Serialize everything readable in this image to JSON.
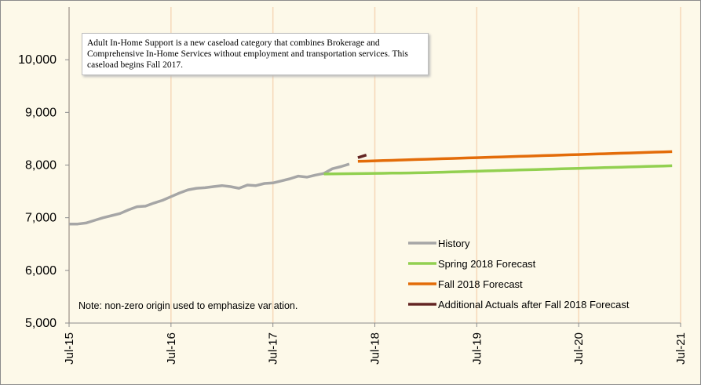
{
  "chart_data": {
    "type": "line",
    "annotation": "Adult In-Home Support is a new caseload category that combines Brokerage and Comprehensive In-Home Services without employment and transportation services. This caseload begins Fall 2017.",
    "note": "Note: non-zero origin used to emphasize variation.",
    "x": [
      "Jul-15",
      "Aug-15",
      "Sep-15",
      "Oct-15",
      "Nov-15",
      "Dec-15",
      "Jan-16",
      "Feb-16",
      "Mar-16",
      "Apr-16",
      "May-16",
      "Jun-16",
      "Jul-16",
      "Aug-16",
      "Sep-16",
      "Oct-16",
      "Nov-16",
      "Dec-16",
      "Jan-17",
      "Feb-17",
      "Mar-17",
      "Apr-17",
      "May-17",
      "Jun-17",
      "Jul-17",
      "Aug-17",
      "Sep-17",
      "Oct-17",
      "Nov-17",
      "Dec-17",
      "Jan-18",
      "Feb-18",
      "Mar-18",
      "Apr-18",
      "May-18",
      "Jun-18",
      "Jul-18",
      "Aug-18",
      "Sep-18",
      "Oct-18",
      "Nov-18",
      "Dec-18",
      "Jan-19",
      "Feb-19",
      "Mar-19",
      "Apr-19",
      "May-19",
      "Jun-19",
      "Jul-19",
      "Aug-19",
      "Sep-19",
      "Oct-19",
      "Nov-19",
      "Dec-19",
      "Jan-20",
      "Feb-20",
      "Mar-20",
      "Apr-20",
      "May-20",
      "Jun-20",
      "Jul-20",
      "Aug-20",
      "Sep-20",
      "Oct-20",
      "Nov-20",
      "Dec-20",
      "Jan-21",
      "Feb-21",
      "Mar-21",
      "Apr-21",
      "May-21",
      "Jun-21",
      "Jul-21"
    ],
    "xticks": [
      "Jul-15",
      "Jul-16",
      "Jul-17",
      "Jul-18",
      "Jul-19",
      "Jul-20",
      "Jul-21"
    ],
    "ylim": [
      5000,
      11000
    ],
    "yticks": [
      {
        "value": 5000,
        "label": "5,000"
      },
      {
        "value": 6000,
        "label": "6,000"
      },
      {
        "value": 7000,
        "label": "7,000"
      },
      {
        "value": 8000,
        "label": "8,000"
      },
      {
        "value": 9000,
        "label": "9,000"
      },
      {
        "value": 10000,
        "label": "10,000"
      }
    ],
    "grid": "x",
    "legend": "lower right",
    "series": [
      {
        "name": "History",
        "color": "#a6a6a6",
        "values": [
          6880,
          6880,
          6900,
          6950,
          7000,
          7040,
          7080,
          7150,
          7210,
          7220,
          7280,
          7330,
          7400,
          7470,
          7530,
          7560,
          7570,
          7590,
          7610,
          7590,
          7560,
          7620,
          7610,
          7650,
          7660,
          7700,
          7740,
          7790,
          7770,
          7810,
          7840,
          7930,
          7970,
          8020,
          null,
          null,
          null,
          null,
          null,
          null,
          null,
          null,
          null,
          null,
          null,
          null,
          null,
          null,
          null,
          null,
          null,
          null,
          null,
          null,
          null,
          null,
          null,
          null,
          null,
          null,
          null,
          null,
          null,
          null,
          null,
          null,
          null,
          null,
          null,
          null,
          null,
          null,
          null
        ]
      },
      {
        "name": "Spring 2018 Forecast",
        "color": "#92d050",
        "values": [
          null,
          null,
          null,
          null,
          null,
          null,
          null,
          null,
          null,
          null,
          null,
          null,
          null,
          null,
          null,
          null,
          null,
          null,
          null,
          null,
          null,
          null,
          null,
          null,
          null,
          null,
          null,
          null,
          null,
          null,
          7830,
          7832,
          7834,
          7836,
          7838,
          7840,
          7842,
          7844,
          7846,
          7848,
          7850,
          7852,
          7856,
          7860,
          7865,
          7870,
          7874,
          7879,
          7883,
          7888,
          7892,
          7897,
          7901,
          7906,
          7910,
          7915,
          7919,
          7924,
          7928,
          7933,
          7937,
          7942,
          7946,
          7951,
          7955,
          7960,
          7964,
          7969,
          7973,
          7978,
          7982,
          7987,
          null
        ]
      },
      {
        "name": "Fall 2018 Forecast",
        "color": "#e36c09",
        "values": [
          null,
          null,
          null,
          null,
          null,
          null,
          null,
          null,
          null,
          null,
          null,
          null,
          null,
          null,
          null,
          null,
          null,
          null,
          null,
          null,
          null,
          null,
          null,
          null,
          null,
          null,
          null,
          null,
          null,
          null,
          null,
          null,
          null,
          null,
          8070,
          8075,
          8080,
          8085,
          8090,
          8095,
          8100,
          8105,
          8110,
          8115,
          8120,
          8125,
          8130,
          8135,
          8140,
          8145,
          8150,
          8155,
          8160,
          8165,
          8170,
          8175,
          8180,
          8185,
          8190,
          8195,
          8200,
          8205,
          8210,
          8215,
          8220,
          8225,
          8230,
          8235,
          8240,
          8245,
          8250,
          8255,
          null
        ]
      },
      {
        "name": "Additional Actuals after Fall 2018 Forecast",
        "color": "#632523",
        "values": [
          null,
          null,
          null,
          null,
          null,
          null,
          null,
          null,
          null,
          null,
          null,
          null,
          null,
          null,
          null,
          null,
          null,
          null,
          null,
          null,
          null,
          null,
          null,
          null,
          null,
          null,
          null,
          null,
          null,
          null,
          null,
          null,
          null,
          null,
          8140,
          8190,
          null,
          null,
          null,
          null,
          null,
          null,
          null,
          null,
          null,
          null,
          null,
          null,
          null,
          null,
          null,
          null,
          null,
          null,
          null,
          null,
          null,
          null,
          null,
          null,
          null,
          null,
          null,
          null,
          null,
          null,
          null,
          null,
          null,
          null,
          null,
          null,
          null
        ]
      }
    ]
  }
}
